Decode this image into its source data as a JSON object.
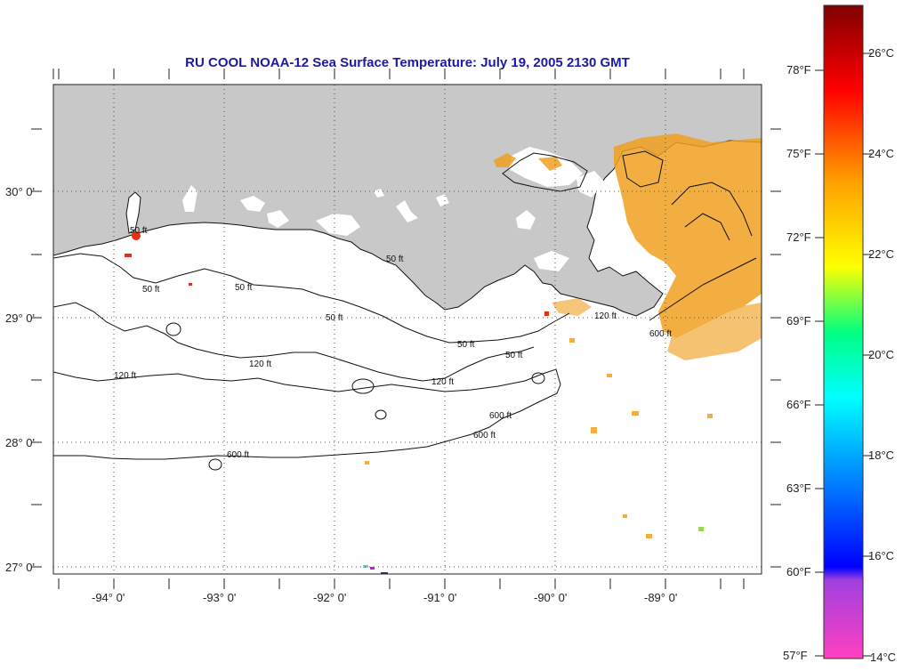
{
  "title": "RU COOL  NOAA-12  Sea Surface Temperature:  July 19, 2005 2130 GMT",
  "lat_labels": [
    "30° 0'",
    "29° 0'",
    "28° 0'",
    "27° 0'"
  ],
  "lon_labels": [
    "-94° 0'",
    "-93° 0'",
    "-92° 0'",
    "-91° 0'",
    "-90° 0'",
    "-89° 0'"
  ],
  "contour_labels": [
    "50 ft",
    "120 ft",
    "600 ft"
  ],
  "colorbar": {
    "fahrenheit": [
      "78°F",
      "75°F",
      "72°F",
      "69°F",
      "66°F",
      "63°F",
      "60°F",
      "57°F"
    ],
    "celsius": [
      "26°C",
      "24°C",
      "22°C",
      "20°C",
      "18°C",
      "16°C",
      "14°C"
    ]
  },
  "colors": {
    "land": "#c8c8c8",
    "title": "#1a1aa6",
    "sst_warm": "#f0a020",
    "sst_hot": "#e83010"
  }
}
